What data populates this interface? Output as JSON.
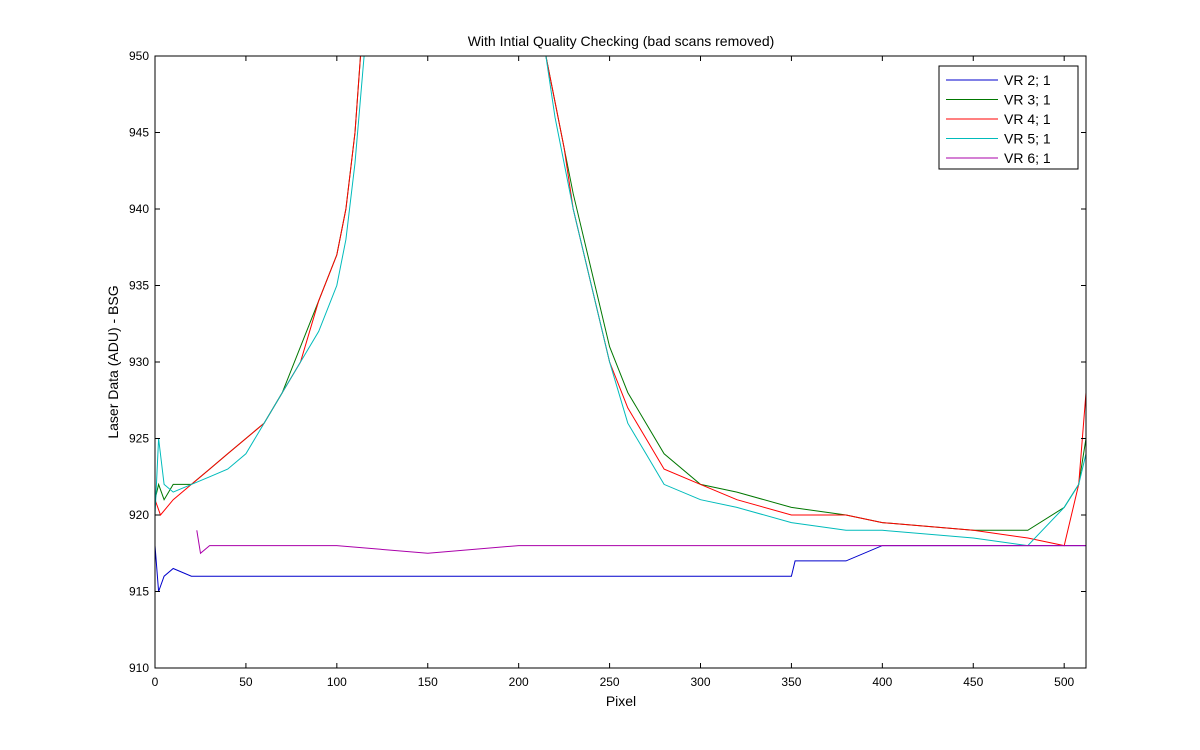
{
  "chart_data": {
    "type": "line",
    "title": "With Intial Quality Checking (bad scans removed)",
    "xlabel": "Pixel",
    "ylabel": "Laser Data (ADU) - BSG",
    "xlim": [
      0,
      512
    ],
    "ylim": [
      910,
      950
    ],
    "xticks": [
      0,
      50,
      100,
      150,
      200,
      250,
      300,
      350,
      400,
      450,
      500
    ],
    "yticks": [
      910,
      915,
      920,
      925,
      930,
      935,
      940,
      945,
      950
    ],
    "legend_position": "top-right",
    "grid": false,
    "series": [
      {
        "name": "VR  2; 1",
        "color": "#0000cc",
        "x": [
          0,
          2,
          5,
          10,
          20,
          30,
          50,
          80,
          100,
          135,
          150,
          200,
          250,
          300,
          330,
          350,
          352,
          380,
          400,
          450,
          500,
          512
        ],
        "y": [
          918,
          915,
          916,
          916.5,
          916,
          916,
          916,
          916,
          916,
          916,
          916,
          916,
          916,
          916,
          916,
          916,
          917,
          917,
          918,
          918,
          918,
          918
        ]
      },
      {
        "name": "VR  3; 1",
        "color": "#007700",
        "x": [
          0,
          2,
          5,
          10,
          20,
          30,
          40,
          50,
          60,
          70,
          80,
          90,
          100,
          105,
          110,
          113,
          215,
          220,
          225,
          230,
          240,
          250,
          260,
          270,
          280,
          300,
          320,
          350,
          380,
          400,
          450,
          480,
          500,
          508,
          512
        ],
        "y": [
          921,
          922,
          921,
          922,
          922,
          923,
          924,
          925,
          926,
          928,
          931,
          934,
          937,
          940,
          945,
          950,
          950,
          947,
          944,
          941,
          936,
          931,
          928,
          926,
          924,
          922,
          921.5,
          920.5,
          920,
          919.5,
          919,
          919,
          920.5,
          922,
          925
        ]
      },
      {
        "name": "VR  4; 1",
        "color": "#ff0000",
        "x": [
          0,
          3,
          10,
          20,
          30,
          40,
          50,
          60,
          70,
          80,
          90,
          100,
          105,
          110,
          113,
          215,
          220,
          225,
          230,
          240,
          250,
          260,
          270,
          280,
          300,
          320,
          350,
          380,
          400,
          450,
          480,
          500,
          508,
          512
        ],
        "y": [
          921,
          920,
          921,
          922,
          923,
          924,
          925,
          926,
          928,
          930,
          934,
          937,
          940,
          945,
          950,
          950,
          947,
          944,
          940,
          935,
          930,
          927,
          925,
          923,
          922,
          921,
          920,
          920,
          919.5,
          919,
          918.5,
          918,
          922,
          928
        ]
      },
      {
        "name": "VR  5; 1",
        "color": "#00bbbb",
        "x": [
          0,
          2,
          5,
          10,
          20,
          30,
          40,
          50,
          60,
          70,
          80,
          90,
          100,
          105,
          110,
          115,
          215,
          220,
          225,
          230,
          240,
          250,
          260,
          270,
          280,
          300,
          320,
          350,
          380,
          400,
          450,
          480,
          500,
          508,
          512
        ],
        "y": [
          920,
          925,
          922,
          921.5,
          922,
          922.5,
          923,
          924,
          926,
          928,
          930,
          932,
          935,
          938,
          943,
          950,
          950,
          946,
          943,
          940,
          935,
          930,
          926,
          924,
          922,
          921,
          920.5,
          919.5,
          919,
          919,
          918.5,
          918,
          920.5,
          922,
          924
        ]
      },
      {
        "name": "VR  6; 1",
        "color": "#aa00aa",
        "x": [
          23,
          25,
          30,
          50,
          100,
          150,
          200,
          250,
          300,
          350,
          400,
          450,
          500,
          512
        ],
        "y": [
          919,
          917.5,
          918,
          918,
          918,
          917.5,
          918,
          918,
          918,
          918,
          918,
          918,
          918,
          918
        ]
      }
    ]
  }
}
